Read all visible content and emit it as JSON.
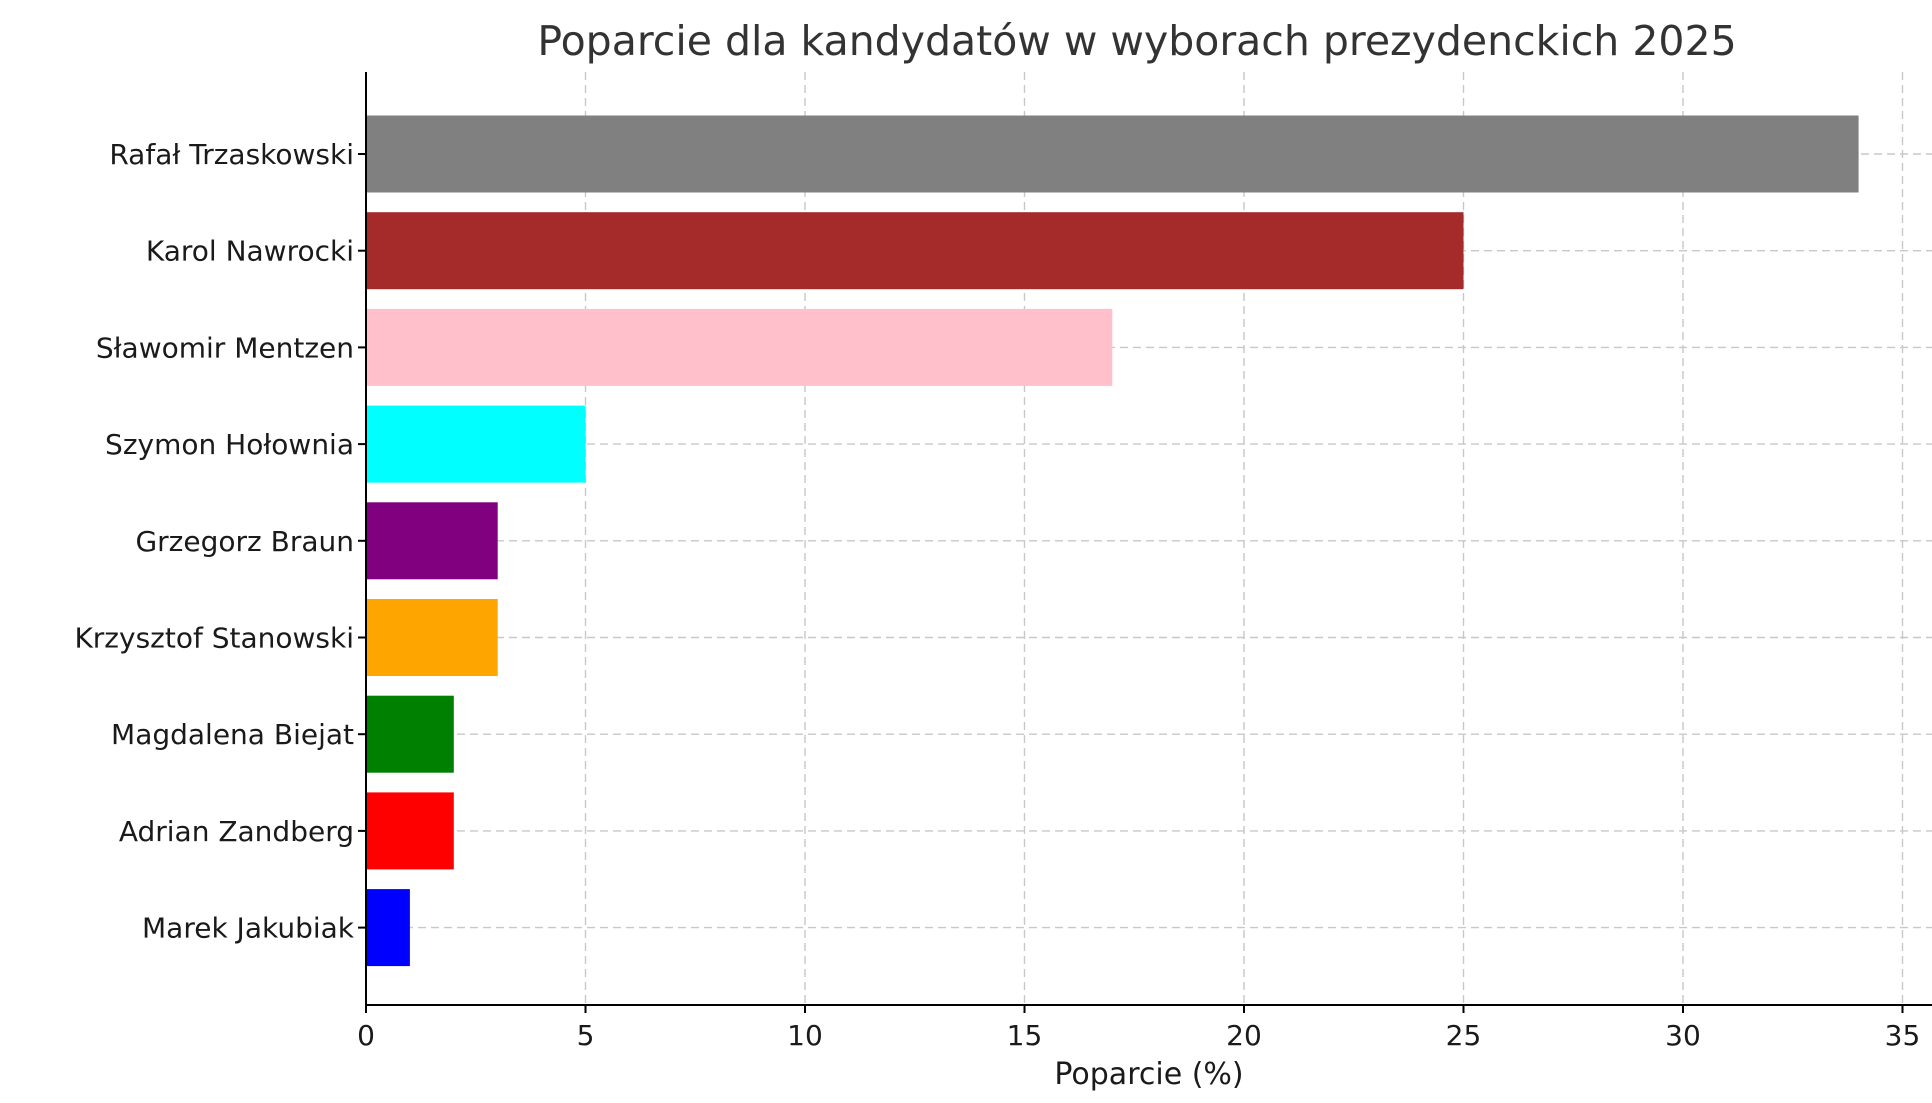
{
  "chart_data": {
    "type": "bar",
    "orientation": "horizontal",
    "title": "Poparcie dla kandydatów w wyborach prezydenckich 2025",
    "xlabel": "Poparcie (%)",
    "ylabel": "",
    "categories": [
      "Rafał Trzaskowski",
      "Karol Nawrocki",
      "Sławomir Mentzen",
      "Szymon Hołownia",
      "Grzegorz Braun",
      "Krzysztof Stanowski",
      "Magdalena Biejat",
      "Adrian Zandberg",
      "Marek Jakubiak"
    ],
    "values": [
      34,
      25,
      17,
      5,
      3,
      3,
      2,
      2,
      1
    ],
    "colors": [
      "#808080",
      "#a52a2a",
      "#ffc0cb",
      "#00ffff",
      "#800080",
      "#ffa500",
      "#008000",
      "#ff0000",
      "#0000ff"
    ],
    "xlim": [
      0,
      35.7
    ],
    "xticks": [
      0,
      5,
      10,
      15,
      20,
      25,
      30,
      35
    ],
    "grid": true
  }
}
